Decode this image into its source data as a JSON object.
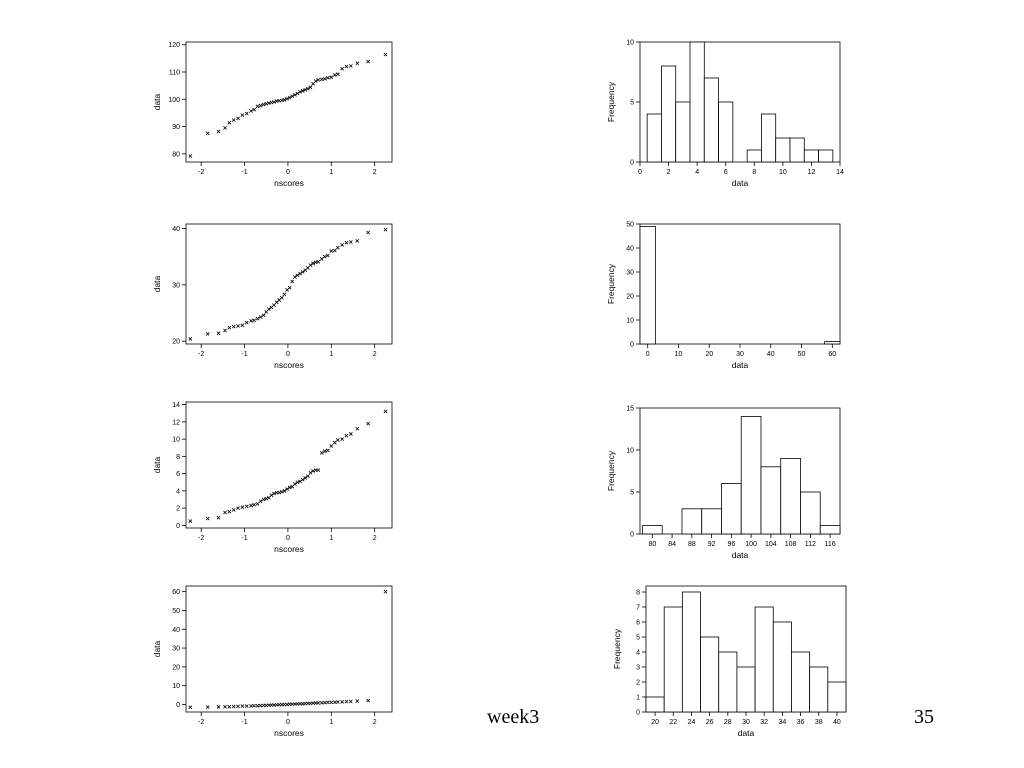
{
  "slide": {
    "title": "week3",
    "page_number": "35"
  },
  "chart_data": [
    {
      "id": "qq1",
      "type": "scatter",
      "xlabel": "nscores",
      "ylabel": "data",
      "xlim": [
        -2.35,
        2.4
      ],
      "ylim": [
        77,
        121
      ],
      "xticks": [
        -2,
        -1,
        0,
        1,
        2
      ],
      "xtick_labels": [
        "-2",
        "-1",
        "0",
        "1",
        "2"
      ],
      "yticks": [
        80,
        90,
        100,
        110,
        120
      ],
      "ytick_labels": [
        "80",
        "90",
        "100",
        "110",
        "120"
      ],
      "marker": "×",
      "points": [
        [
          -2.25,
          79.2
        ],
        [
          -1.85,
          87.5
        ],
        [
          -1.6,
          88.2
        ],
        [
          -1.45,
          89.5
        ],
        [
          -1.35,
          91.4
        ],
        [
          -1.25,
          92.4
        ],
        [
          -1.15,
          93
        ],
        [
          -1.05,
          94.2
        ],
        [
          -0.95,
          94.8
        ],
        [
          -0.85,
          95.7
        ],
        [
          -0.78,
          96.2
        ],
        [
          -0.7,
          97.4
        ],
        [
          -0.63,
          97.7
        ],
        [
          -0.56,
          98.1
        ],
        [
          -0.5,
          98.4
        ],
        [
          -0.44,
          98.6
        ],
        [
          -0.38,
          98.8
        ],
        [
          -0.32,
          99
        ],
        [
          -0.26,
          99.3
        ],
        [
          -0.2,
          99.5
        ],
        [
          -0.14,
          99.6
        ],
        [
          -0.08,
          99.8
        ],
        [
          -0.02,
          100.2
        ],
        [
          0.04,
          100.6
        ],
        [
          0.1,
          101.1
        ],
        [
          0.16,
          101.6
        ],
        [
          0.22,
          102.1
        ],
        [
          0.28,
          102.7
        ],
        [
          0.34,
          103.1
        ],
        [
          0.4,
          103.5
        ],
        [
          0.46,
          103.9
        ],
        [
          0.52,
          104.4
        ],
        [
          0.58,
          105.7
        ],
        [
          0.64,
          106.7
        ],
        [
          0.7,
          107.1
        ],
        [
          0.78,
          107.3
        ],
        [
          0.85,
          107.5
        ],
        [
          0.92,
          107.9
        ],
        [
          1.0,
          108.1
        ],
        [
          1.08,
          108.9
        ],
        [
          1.15,
          109.2
        ],
        [
          1.25,
          111.2
        ],
        [
          1.35,
          112
        ],
        [
          1.45,
          112.2
        ],
        [
          1.6,
          113.2
        ],
        [
          1.85,
          113.8
        ],
        [
          2.25,
          116.4
        ]
      ]
    },
    {
      "id": "hist1",
      "type": "bar",
      "xlabel": "data",
      "ylabel": "Frequency",
      "xlim": [
        0,
        14
      ],
      "ylim": [
        0,
        10
      ],
      "xticks": [
        0,
        2,
        4,
        6,
        8,
        10,
        12,
        14
      ],
      "xtick_labels": [
        "0",
        "2",
        "4",
        "6",
        "8",
        "10",
        "12",
        "14"
      ],
      "yticks": [
        0,
        5,
        10
      ],
      "ytick_labels": [
        "0",
        "5",
        "10"
      ],
      "categories": [
        "1",
        "2",
        "3",
        "4",
        "5",
        "6",
        "7",
        "8",
        "9",
        "10",
        "11",
        "12",
        "13"
      ],
      "bin_width": 1,
      "values": [
        4,
        8,
        5,
        10,
        7,
        5,
        0,
        1,
        4,
        2,
        2,
        1,
        1
      ]
    },
    {
      "id": "qq2",
      "type": "scatter",
      "xlabel": "nscores",
      "ylabel": "data",
      "xlim": [
        -2.35,
        2.4
      ],
      "ylim": [
        19.5,
        40.8
      ],
      "xticks": [
        -2,
        -1,
        0,
        1,
        2
      ],
      "xtick_labels": [
        "-2",
        "-1",
        "0",
        "1",
        "2"
      ],
      "yticks": [
        20,
        30,
        40
      ],
      "ytick_labels": [
        "20",
        "30",
        "40"
      ],
      "marker": "×",
      "points": [
        [
          -2.25,
          20.4
        ],
        [
          -1.85,
          21.3
        ],
        [
          -1.6,
          21.4
        ],
        [
          -1.45,
          21.9
        ],
        [
          -1.35,
          22.4
        ],
        [
          -1.25,
          22.6
        ],
        [
          -1.15,
          22.7
        ],
        [
          -1.05,
          22.8
        ],
        [
          -0.95,
          23.3
        ],
        [
          -0.85,
          23.6
        ],
        [
          -0.78,
          23.7
        ],
        [
          -0.7,
          24
        ],
        [
          -0.63,
          24.3
        ],
        [
          -0.56,
          24.6
        ],
        [
          -0.5,
          25.2
        ],
        [
          -0.44,
          25.7
        ],
        [
          -0.38,
          26
        ],
        [
          -0.32,
          26.4
        ],
        [
          -0.26,
          26.9
        ],
        [
          -0.2,
          27.3
        ],
        [
          -0.14,
          27.7
        ],
        [
          -0.08,
          28.3
        ],
        [
          -0.02,
          29.1
        ],
        [
          0.04,
          29.5
        ],
        [
          0.1,
          30.6
        ],
        [
          0.16,
          31.4
        ],
        [
          0.22,
          31.7
        ],
        [
          0.28,
          32
        ],
        [
          0.34,
          32.3
        ],
        [
          0.4,
          32.6
        ],
        [
          0.46,
          33
        ],
        [
          0.52,
          33.5
        ],
        [
          0.58,
          33.8
        ],
        [
          0.64,
          34
        ],
        [
          0.7,
          34.1
        ],
        [
          0.78,
          34.6
        ],
        [
          0.85,
          35
        ],
        [
          0.92,
          35.2
        ],
        [
          1.0,
          36
        ],
        [
          1.08,
          36.1
        ],
        [
          1.15,
          36.6
        ],
        [
          1.25,
          37.1
        ],
        [
          1.35,
          37.5
        ],
        [
          1.45,
          37.6
        ],
        [
          1.6,
          37.8
        ],
        [
          1.85,
          39.3
        ],
        [
          2.25,
          39.8
        ]
      ]
    },
    {
      "id": "hist2",
      "type": "bar",
      "xlabel": "data",
      "ylabel": "Frequency",
      "xlim": [
        -2.5,
        62.5
      ],
      "ylim": [
        0,
        50
      ],
      "xticks": [
        0,
        10,
        20,
        30,
        40,
        50,
        60
      ],
      "xtick_labels": [
        "0",
        "10",
        "20",
        "30",
        "40",
        "50",
        "60"
      ],
      "yticks": [
        0,
        10,
        20,
        30,
        40,
        50
      ],
      "ytick_labels": [
        "0",
        "10",
        "20",
        "30",
        "40",
        "50"
      ],
      "categories": [
        "0",
        "5",
        "10",
        "15",
        "20",
        "25",
        "30",
        "35",
        "40",
        "45",
        "50",
        "55",
        "60"
      ],
      "bin_width": 5,
      "values": [
        49,
        0,
        0,
        0,
        0,
        0,
        0,
        0,
        0,
        0,
        0,
        0,
        1
      ]
    },
    {
      "id": "qq3",
      "type": "scatter",
      "xlabel": "nscores",
      "ylabel": "data",
      "xlim": [
        -2.35,
        2.4
      ],
      "ylim": [
        -0.3,
        14.3
      ],
      "xticks": [
        -2,
        -1,
        0,
        1,
        2
      ],
      "xtick_labels": [
        "-2",
        "-1",
        "0",
        "1",
        "2"
      ],
      "yticks": [
        0,
        2,
        4,
        6,
        8,
        10,
        12,
        14
      ],
      "ytick_labels": [
        "0",
        "2",
        "4",
        "6",
        "8",
        "10",
        "12",
        "14"
      ],
      "marker": "×",
      "points": [
        [
          -2.25,
          0.5
        ],
        [
          -1.85,
          0.8
        ],
        [
          -1.6,
          0.9
        ],
        [
          -1.45,
          1.5
        ],
        [
          -1.35,
          1.6
        ],
        [
          -1.25,
          1.8
        ],
        [
          -1.15,
          2
        ],
        [
          -1.05,
          2.1
        ],
        [
          -0.95,
          2.2
        ],
        [
          -0.85,
          2.3
        ],
        [
          -0.78,
          2.4
        ],
        [
          -0.7,
          2.5
        ],
        [
          -0.63,
          2.8
        ],
        [
          -0.56,
          3
        ],
        [
          -0.5,
          3.1
        ],
        [
          -0.44,
          3.2
        ],
        [
          -0.38,
          3.5
        ],
        [
          -0.32,
          3.7
        ],
        [
          -0.26,
          3.8
        ],
        [
          -0.2,
          3.8
        ],
        [
          -0.14,
          3.9
        ],
        [
          -0.08,
          4
        ],
        [
          -0.02,
          4.2
        ],
        [
          0.04,
          4.4
        ],
        [
          0.1,
          4.5
        ],
        [
          0.16,
          4.8
        ],
        [
          0.22,
          5
        ],
        [
          0.28,
          5.1
        ],
        [
          0.34,
          5.3
        ],
        [
          0.4,
          5.5
        ],
        [
          0.46,
          5.7
        ],
        [
          0.52,
          6.1
        ],
        [
          0.58,
          6.3
        ],
        [
          0.64,
          6.4
        ],
        [
          0.7,
          6.4
        ],
        [
          0.78,
          8.4
        ],
        [
          0.85,
          8.6
        ],
        [
          0.92,
          8.7
        ],
        [
          1.0,
          9.2
        ],
        [
          1.08,
          9.6
        ],
        [
          1.15,
          9.9
        ],
        [
          1.25,
          10
        ],
        [
          1.35,
          10.4
        ],
        [
          1.45,
          10.6
        ],
        [
          1.6,
          11.2
        ],
        [
          1.85,
          11.8
        ],
        [
          2.25,
          13.2
        ]
      ]
    },
    {
      "id": "hist3",
      "type": "bar",
      "xlabel": "data",
      "ylabel": "Frequency",
      "xlim": [
        77.5,
        118
      ],
      "ylim": [
        0,
        15
      ],
      "xticks": [
        80,
        84,
        88,
        92,
        96,
        100,
        104,
        108,
        112,
        116
      ],
      "xtick_labels": [
        "80",
        "84",
        "88",
        "92",
        "96",
        "100",
        "104",
        "108",
        "112",
        "116"
      ],
      "yticks": [
        0,
        5,
        10,
        15
      ],
      "ytick_labels": [
        "0",
        "5",
        "10",
        "15"
      ],
      "categories": [
        "80",
        "84",
        "88",
        "92",
        "96",
        "100",
        "104",
        "108",
        "112",
        "116"
      ],
      "bin_width": 4,
      "values": [
        1,
        0,
        3,
        3,
        6,
        14,
        8,
        9,
        5,
        1
      ]
    },
    {
      "id": "qq4",
      "type": "scatter",
      "xlabel": "nscores",
      "ylabel": "data",
      "xlim": [
        -2.35,
        2.4
      ],
      "ylim": [
        -4,
        63
      ],
      "xticks": [
        -2,
        -1,
        0,
        1,
        2
      ],
      "xtick_labels": [
        "-2",
        "-1",
        "0",
        "1",
        "2"
      ],
      "yticks": [
        0,
        10,
        20,
        30,
        40,
        50,
        60
      ],
      "ytick_labels": [
        "0",
        "10",
        "20",
        "30",
        "40",
        "50",
        "60"
      ],
      "marker": "×",
      "points": [
        [
          -2.25,
          -1.5
        ],
        [
          -1.85,
          -1.4
        ],
        [
          -1.6,
          -1.3
        ],
        [
          -1.45,
          -1.2
        ],
        [
          -1.35,
          -1.2
        ],
        [
          -1.25,
          -1.1
        ],
        [
          -1.15,
          -1.0
        ],
        [
          -1.05,
          -0.9
        ],
        [
          -0.95,
          -0.9
        ],
        [
          -0.85,
          -0.8
        ],
        [
          -0.78,
          -0.7
        ],
        [
          -0.7,
          -0.7
        ],
        [
          -0.63,
          -0.6
        ],
        [
          -0.56,
          -0.5
        ],
        [
          -0.5,
          -0.5
        ],
        [
          -0.44,
          -0.4
        ],
        [
          -0.38,
          -0.3
        ],
        [
          -0.32,
          -0.3
        ],
        [
          -0.26,
          -0.2
        ],
        [
          -0.2,
          -0.1
        ],
        [
          -0.14,
          -0.1
        ],
        [
          -0.08,
          0
        ],
        [
          -0.02,
          0
        ],
        [
          0.04,
          0.1
        ],
        [
          0.1,
          0.2
        ],
        [
          0.16,
          0.2
        ],
        [
          0.22,
          0.3
        ],
        [
          0.28,
          0.4
        ],
        [
          0.34,
          0.4
        ],
        [
          0.4,
          0.5
        ],
        [
          0.46,
          0.6
        ],
        [
          0.52,
          0.6
        ],
        [
          0.58,
          0.7
        ],
        [
          0.64,
          0.8
        ],
        [
          0.7,
          0.8
        ],
        [
          0.78,
          0.9
        ],
        [
          0.85,
          1.0
        ],
        [
          0.92,
          1.1
        ],
        [
          1.0,
          1.1
        ],
        [
          1.08,
          1.2
        ],
        [
          1.15,
          1.3
        ],
        [
          1.25,
          1.4
        ],
        [
          1.35,
          1.5
        ],
        [
          1.45,
          1.6
        ],
        [
          1.6,
          1.8
        ],
        [
          1.85,
          2.1
        ],
        [
          2.25,
          60
        ]
      ]
    },
    {
      "id": "hist4",
      "type": "bar",
      "xlabel": "data",
      "ylabel": "Frequency",
      "xlim": [
        19,
        41
      ],
      "ylim": [
        0,
        8.4
      ],
      "xticks": [
        20,
        22,
        24,
        26,
        28,
        30,
        32,
        34,
        36,
        38,
        40
      ],
      "xtick_labels": [
        "20",
        "22",
        "24",
        "26",
        "28",
        "30",
        "32",
        "34",
        "36",
        "38",
        "40"
      ],
      "yticks": [
        0,
        1,
        2,
        3,
        4,
        5,
        6,
        7,
        8
      ],
      "ytick_labels": [
        "0",
        "1",
        "2",
        "3",
        "4",
        "5",
        "6",
        "7",
        "8"
      ],
      "categories": [
        "20",
        "22",
        "24",
        "26",
        "28",
        "30",
        "32",
        "34",
        "36",
        "38",
        "40"
      ],
      "bin_width": 2,
      "values": [
        1,
        7,
        8,
        5,
        4,
        3,
        7,
        6,
        4,
        3,
        2
      ]
    }
  ]
}
